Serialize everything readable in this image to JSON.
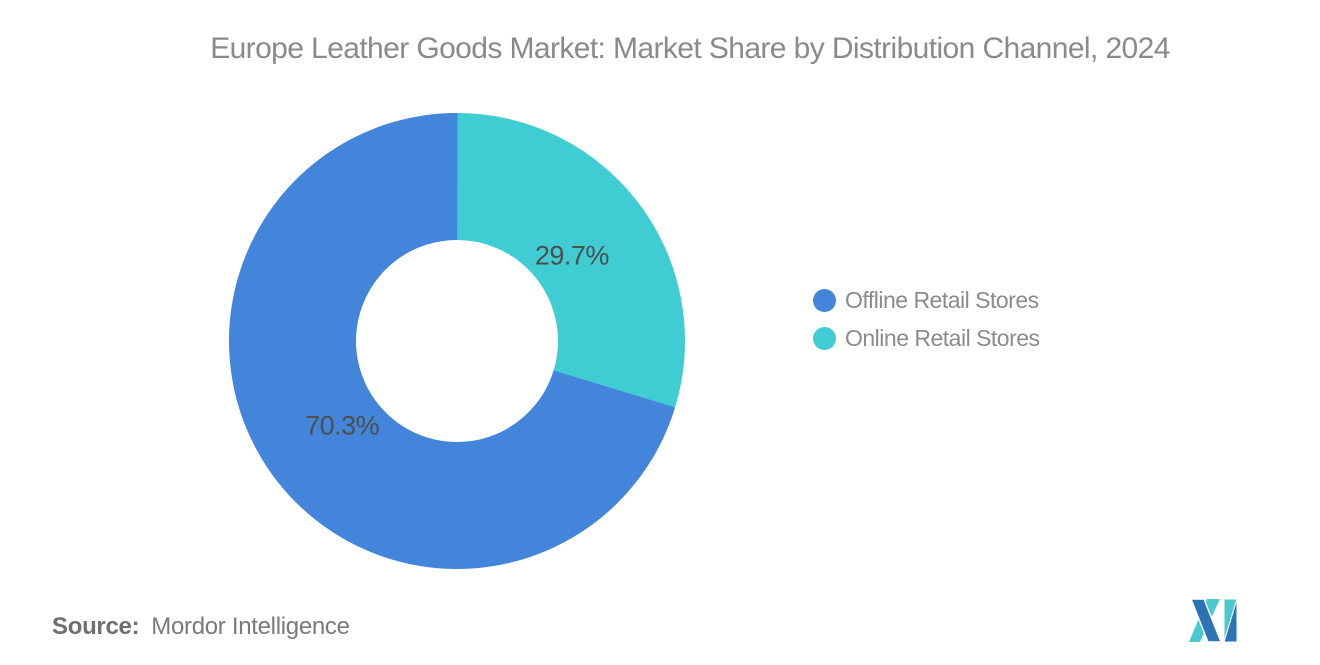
{
  "title": "Europe Leather Goods Market: Market Share by Distribution Channel, 2024",
  "chart_data": {
    "type": "pie",
    "subtype": "donut",
    "title": "Europe Leather Goods Market: Market Share by Distribution Channel, 2024",
    "start_angle_deg": 0,
    "direction": "clockwise",
    "outer_radius": 228,
    "inner_radius": 101,
    "label_radius": 143,
    "data_labels": "percent",
    "data_labels_color": "#4e4e4e",
    "legend_position": "right-middle",
    "slices": [
      {
        "label": "Online Retail Stores",
        "value": 29.7,
        "data_label": "29.7%",
        "color": "#3fcdd3"
      },
      {
        "label": "Offline Retail Stores",
        "value": 70.3,
        "data_label": "70.3%",
        "color": "#4385db"
      }
    ]
  },
  "legend": {
    "items": [
      {
        "label": "Offline Retail Stores",
        "color": "#4385db"
      },
      {
        "label": "Online Retail Stores",
        "color": "#3fcdd3"
      }
    ]
  },
  "source": {
    "prefix": "Source:",
    "text": "Mordor Intelligence"
  },
  "logo": {
    "alt": "mordor-intelligence-logo",
    "blue": "#2e72b6",
    "teal": "#4bc8ce"
  }
}
